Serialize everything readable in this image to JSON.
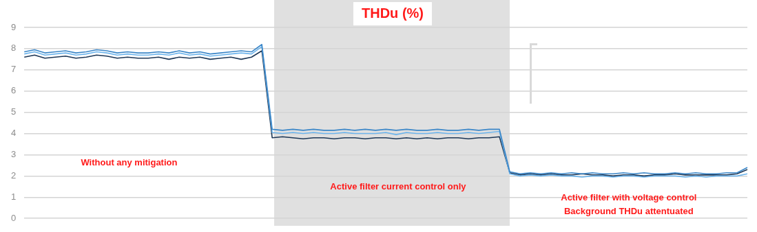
{
  "chart_data": {
    "type": "line",
    "title": "THDu (%)",
    "categories": [
      null,
      null,
      null,
      null,
      null,
      null,
      null,
      null,
      null,
      null,
      null,
      null,
      null,
      null,
      null,
      null,
      null,
      null,
      null,
      null,
      null,
      null,
      null,
      null,
      null,
      null,
      null,
      null,
      null,
      null,
      null,
      null,
      null,
      null,
      null,
      null,
      null,
      null,
      null,
      null,
      null,
      null,
      null,
      null,
      null,
      null,
      null,
      null,
      null,
      null,
      null,
      null,
      null,
      null,
      null,
      null,
      null,
      null,
      null,
      null,
      null,
      null,
      null,
      null,
      null,
      null,
      null,
      null,
      null,
      null,
      null
    ],
    "ylim": [
      0,
      9
    ],
    "yticks": [
      0,
      1,
      2,
      3,
      4,
      5,
      6,
      7,
      8,
      9
    ],
    "grid": "y",
    "tick_labels": "y",
    "legend": false,
    "marker": "none",
    "line_style": "solid",
    "series": [
      {
        "color": "#3a86c8",
        "values": [
          7.85,
          7.95,
          7.8,
          7.85,
          7.9,
          7.8,
          7.85,
          7.95,
          7.9,
          7.8,
          7.85,
          7.8,
          7.8,
          7.85,
          7.8,
          7.9,
          7.8,
          7.85,
          7.75,
          7.8,
          7.85,
          7.9,
          7.85,
          8.2,
          4.2,
          4.15,
          4.2,
          4.15,
          4.2,
          4.15,
          4.15,
          4.2,
          4.15,
          4.2,
          4.15,
          4.2,
          4.15,
          4.2,
          4.15,
          4.15,
          4.2,
          4.15,
          4.15,
          4.2,
          4.15,
          4.2,
          4.2,
          2.2,
          2.1,
          2.15,
          2.1,
          2.15,
          2.1,
          2.15,
          2.1,
          2.15,
          2.1,
          2.1,
          2.15,
          2.1,
          2.15,
          2.1,
          2.1,
          2.15,
          2.1,
          2.15,
          2.1,
          2.1,
          2.15,
          2.15,
          2.4
        ]
      },
      {
        "color": "#6cb4ec",
        "values": [
          7.75,
          7.85,
          7.7,
          7.75,
          7.8,
          7.7,
          7.75,
          7.85,
          7.8,
          7.7,
          7.75,
          7.7,
          7.7,
          7.75,
          7.7,
          7.8,
          7.7,
          7.75,
          7.65,
          7.7,
          7.75,
          7.8,
          7.75,
          8.1,
          4.05,
          4.0,
          4.05,
          4.0,
          4.05,
          4.0,
          4.0,
          4.05,
          4.0,
          4.0,
          4.0,
          4.05,
          3.95,
          4.05,
          4.0,
          4.0,
          4.05,
          4.0,
          4.0,
          4.05,
          4.0,
          4.05,
          4.1,
          2.1,
          2.0,
          2.05,
          2.0,
          2.05,
          2.0,
          2.0,
          1.95,
          2.0,
          2.0,
          1.95,
          2.0,
          2.0,
          1.95,
          2.0,
          2.0,
          2.0,
          1.95,
          2.0,
          1.95,
          2.0,
          2.0,
          2.0,
          2.1
        ]
      },
      {
        "color": "#1c3655",
        "values": [
          7.6,
          7.7,
          7.55,
          7.6,
          7.65,
          7.55,
          7.6,
          7.7,
          7.65,
          7.55,
          7.6,
          7.55,
          7.55,
          7.6,
          7.5,
          7.6,
          7.55,
          7.6,
          7.5,
          7.55,
          7.6,
          7.5,
          7.6,
          7.9,
          3.8,
          3.85,
          3.8,
          3.75,
          3.8,
          3.8,
          3.75,
          3.8,
          3.8,
          3.75,
          3.8,
          3.8,
          3.75,
          3.8,
          3.75,
          3.8,
          3.75,
          3.8,
          3.8,
          3.75,
          3.8,
          3.8,
          3.85,
          2.15,
          2.05,
          2.1,
          2.05,
          2.1,
          2.05,
          2.05,
          2.1,
          2.05,
          2.05,
          2.0,
          2.05,
          2.05,
          2.0,
          2.05,
          2.05,
          2.1,
          2.05,
          2.05,
          2.05,
          2.05,
          2.05,
          2.1,
          2.3
        ]
      }
    ],
    "annotations": [
      "Without any mitigation",
      "Active filter current control only",
      "Active filter with voltage control\nBackground THDu attentuated"
    ]
  }
}
